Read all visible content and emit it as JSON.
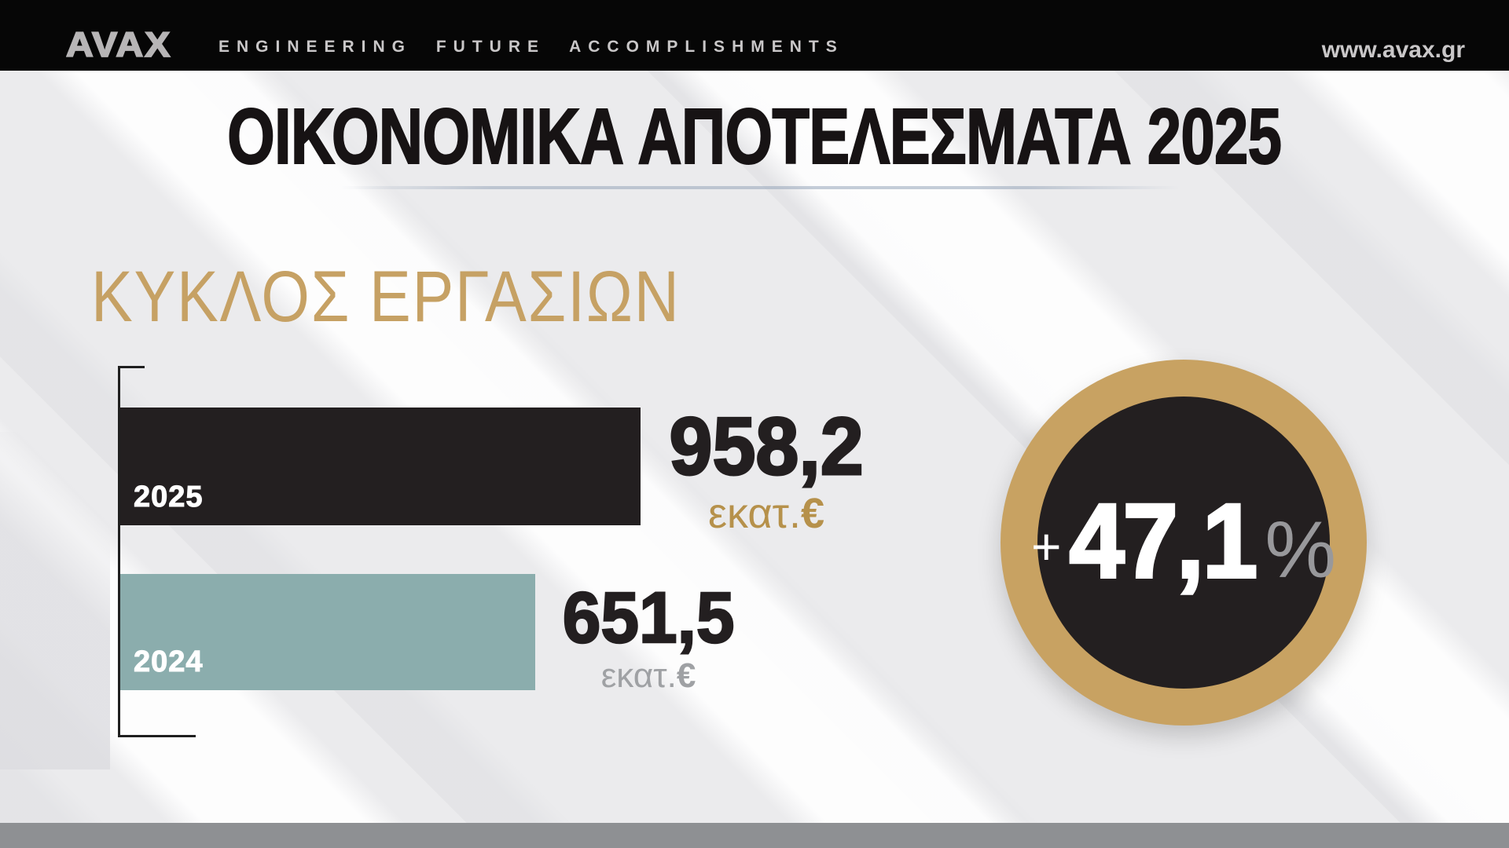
{
  "header": {
    "logo": "AVAX",
    "tagline": "ENGINEERING FUTURE ACCOMPLISHMENTS",
    "website": "www.avax.gr"
  },
  "title": "ΟΙΚΟΝΟΜΙΚΑ ΑΠΟΤΕΛΕΣΜΑΤΑ 2025",
  "section": {
    "heading": "ΚΥΚΛΟΣ ΕΡΓΑΣΙΩΝ"
  },
  "bars": [
    {
      "year": "2025",
      "value": "958,2",
      "unit_text": "εκατ.",
      "unit_symbol": "€"
    },
    {
      "year": "2024",
      "value": "651,5",
      "unit_text": "εκατ.",
      "unit_symbol": "€"
    }
  ],
  "badge": {
    "plus": "+",
    "value": "47,1",
    "percent": "%"
  },
  "chart_data": {
    "type": "bar",
    "orientation": "horizontal",
    "title": "ΚΥΚΛΟΣ ΕΡΓΑΣΙΩΝ",
    "categories": [
      "2025",
      "2024"
    ],
    "values": [
      958.2,
      651.5
    ],
    "unit": "εκατ.€",
    "value_labels": [
      "958,2 εκατ.€",
      "651,5 εκατ.€"
    ],
    "change_label": "+47,1%",
    "bar_colors": [
      "#231f20",
      "#8badad"
    ],
    "legend": false,
    "grid": false
  },
  "colors": {
    "header_bg": "#060606",
    "gold_heading": "#c6a164",
    "gold_unit": "#b6914b",
    "ring_gold": "#c8a262",
    "bar_dark": "#231f20",
    "bar_teal": "#8badad",
    "unit_gray": "#9fa1a4",
    "percent_gray": "#98989b",
    "footer_gray": "#8e9093",
    "background": "#ebebed"
  }
}
